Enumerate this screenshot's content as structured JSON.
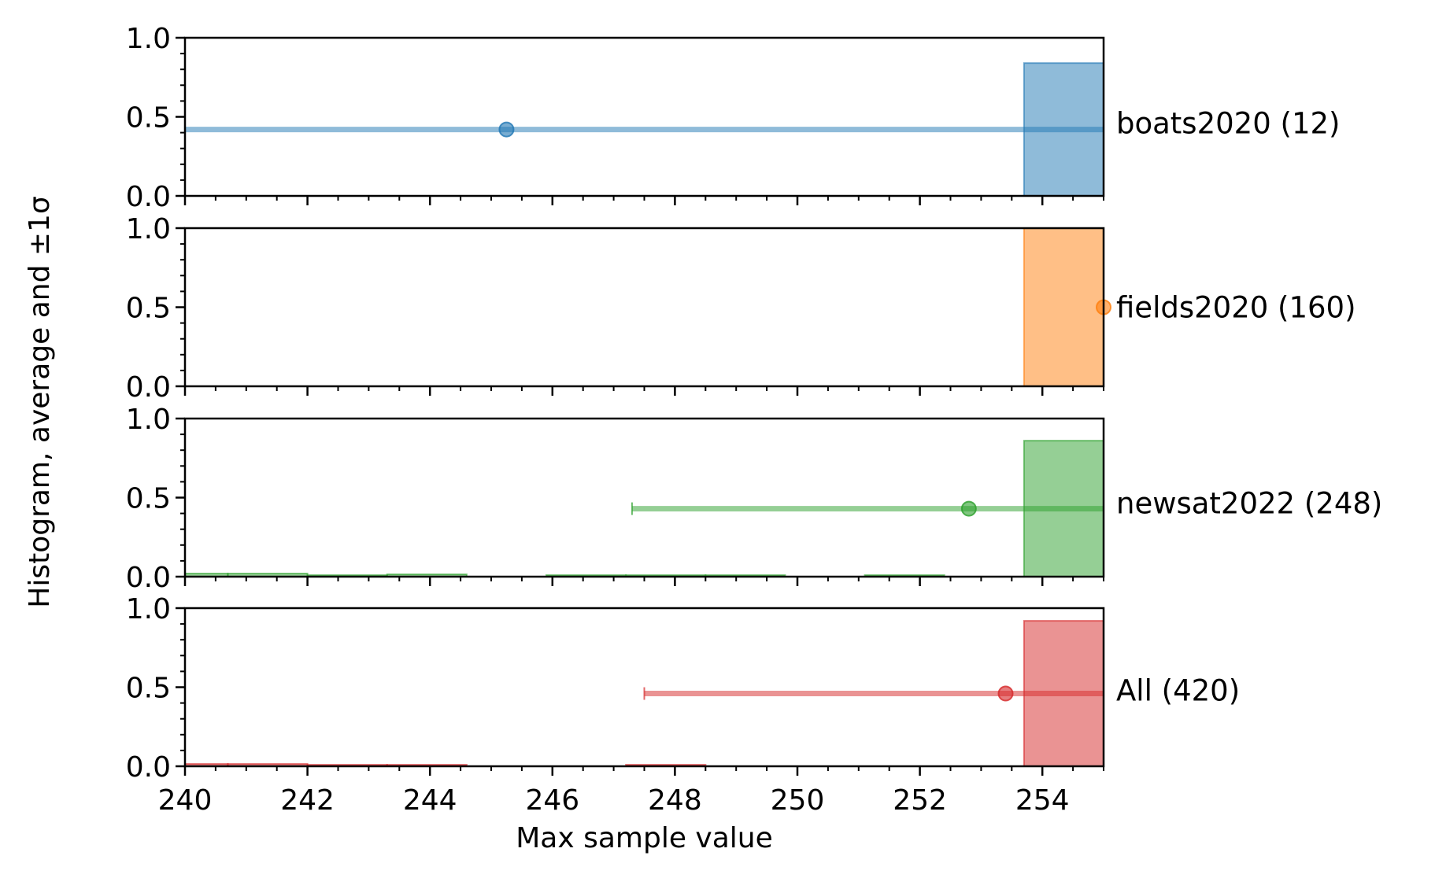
{
  "chart_data": {
    "type": "bar",
    "xlabel": "Max sample value",
    "ylabel": "Histogram, average and ±1σ",
    "xlim": [
      240,
      255
    ],
    "ylim": [
      0,
      1
    ],
    "x_ticks": [
      "240",
      "242",
      "244",
      "246",
      "248",
      "250",
      "252",
      "254"
    ],
    "y_ticks": [
      "0.0",
      "0.5",
      "1.0"
    ],
    "grid": false,
    "legend": "none",
    "panels": [
      {
        "label": "boats2020 (12)",
        "color": "#1f77b4",
        "histogram": [
          {
            "x0": 253.7,
            "x1": 255,
            "value": 0.84
          }
        ],
        "mean": 245.25,
        "std_low": 240,
        "std_high": 255,
        "marker_y": 0.42
      },
      {
        "label": "fields2020 (160)",
        "color": "#ff7f0e",
        "histogram": [
          {
            "x0": 253.7,
            "x1": 255,
            "value": 1.0
          }
        ],
        "mean": 255,
        "std_low": 255,
        "std_high": 255,
        "marker_y": 0.5
      },
      {
        "label": "newsat2022 (248)",
        "color": "#2ca02c",
        "histogram": [
          {
            "x0": 240,
            "x1": 240.7,
            "value": 0.02
          },
          {
            "x0": 240.7,
            "x1": 242,
            "value": 0.02
          },
          {
            "x0": 242,
            "x1": 243.3,
            "value": 0.01
          },
          {
            "x0": 243.3,
            "x1": 244.6,
            "value": 0.015
          },
          {
            "x0": 245.9,
            "x1": 247.2,
            "value": 0.01
          },
          {
            "x0": 247.2,
            "x1": 248.5,
            "value": 0.01
          },
          {
            "x0": 248.5,
            "x1": 249.8,
            "value": 0.01
          },
          {
            "x0": 251.1,
            "x1": 252.4,
            "value": 0.01
          },
          {
            "x0": 253.7,
            "x1": 255,
            "value": 0.86
          }
        ],
        "mean": 252.8,
        "std_low": 247.3,
        "std_high": 255,
        "marker_y": 0.43
      },
      {
        "label": "All (420)",
        "color": "#d62728",
        "histogram": [
          {
            "x0": 240,
            "x1": 240.7,
            "value": 0.015
          },
          {
            "x0": 240.7,
            "x1": 242,
            "value": 0.015
          },
          {
            "x0": 242,
            "x1": 243.3,
            "value": 0.01
          },
          {
            "x0": 243.3,
            "x1": 244.6,
            "value": 0.01
          },
          {
            "x0": 247.2,
            "x1": 248.5,
            "value": 0.01
          },
          {
            "x0": 253.7,
            "x1": 255,
            "value": 0.92
          }
        ],
        "mean": 253.4,
        "std_low": 247.5,
        "std_high": 255,
        "marker_y": 0.46
      }
    ]
  }
}
